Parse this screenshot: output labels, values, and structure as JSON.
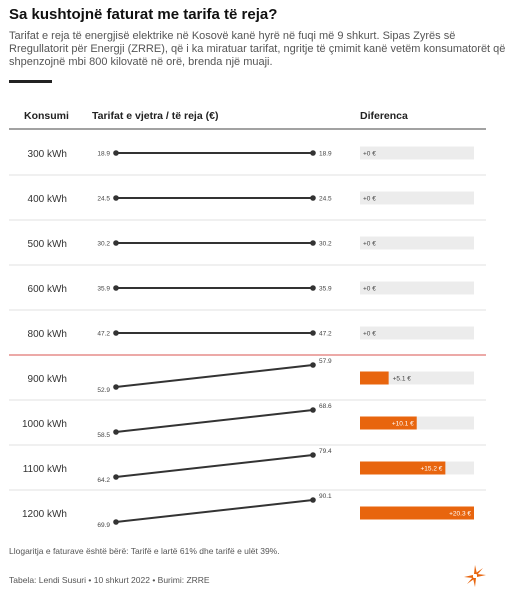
{
  "title": "Sa kushtojnë faturat me tarifa të reja?",
  "subtitle": "Tarifat e reja të energjisë elektrike në Kosovë kanë hyrë në fuqi më 9 shkurt. Sipas Zyrës së Rregullatorit për Energji (ZRRE), që i ka miratuar tarifat, ngritje të çmimit kanë vetëm konsumatorët që shpenzojnë mbi 800 kilovatë në orë, brenda një muaji.",
  "footnote": "Llogaritja e faturave është bërë: Tarifë e lartë 61% dhe tarifë e ulët 39%.",
  "source": "Tabela: Lendi Susuri • 10 shkurt 2022 • Burimi: ZRRE",
  "colors": {
    "accent": "#e8650e",
    "line": "#333333",
    "divider": "#d9534f",
    "bar_bg": "#ececec"
  },
  "chart_data": {
    "type": "table",
    "columns": [
      "Konsumi",
      "Tarifat e vjetra / të reja (€)",
      "Diferenca"
    ],
    "rows": [
      {
        "label": "300 kWh",
        "old": 18.9,
        "new": 18.9,
        "diff": 0,
        "diff_label": "+0 €"
      },
      {
        "label": "400 kWh",
        "old": 24.5,
        "new": 24.5,
        "diff": 0,
        "diff_label": "+0 €"
      },
      {
        "label": "500 kWh",
        "old": 30.2,
        "new": 30.2,
        "diff": 0,
        "diff_label": "+0 €"
      },
      {
        "label": "600 kWh",
        "old": 35.9,
        "new": 35.9,
        "diff": 0,
        "diff_label": "+0 €"
      },
      {
        "label": "800 kWh",
        "old": 47.2,
        "new": 47.2,
        "diff": 0,
        "diff_label": "+0 €"
      },
      {
        "label": "900 kWh",
        "old": 52.9,
        "new": 57.9,
        "diff": 5.1,
        "diff_label": "+5.1 €"
      },
      {
        "label": "1000 kWh",
        "old": 58.5,
        "new": 68.6,
        "diff": 10.1,
        "diff_label": "+10.1 €"
      },
      {
        "label": "1100 kWh",
        "old": 64.2,
        "new": 79.4,
        "diff": 15.2,
        "diff_label": "+15.2 €"
      },
      {
        "label": "1200 kWh",
        "old": 69.9,
        "new": 90.1,
        "diff": 20.3,
        "diff_label": "+20.3 €"
      }
    ],
    "diff_max": 20.3,
    "divider_after_row": 4
  }
}
